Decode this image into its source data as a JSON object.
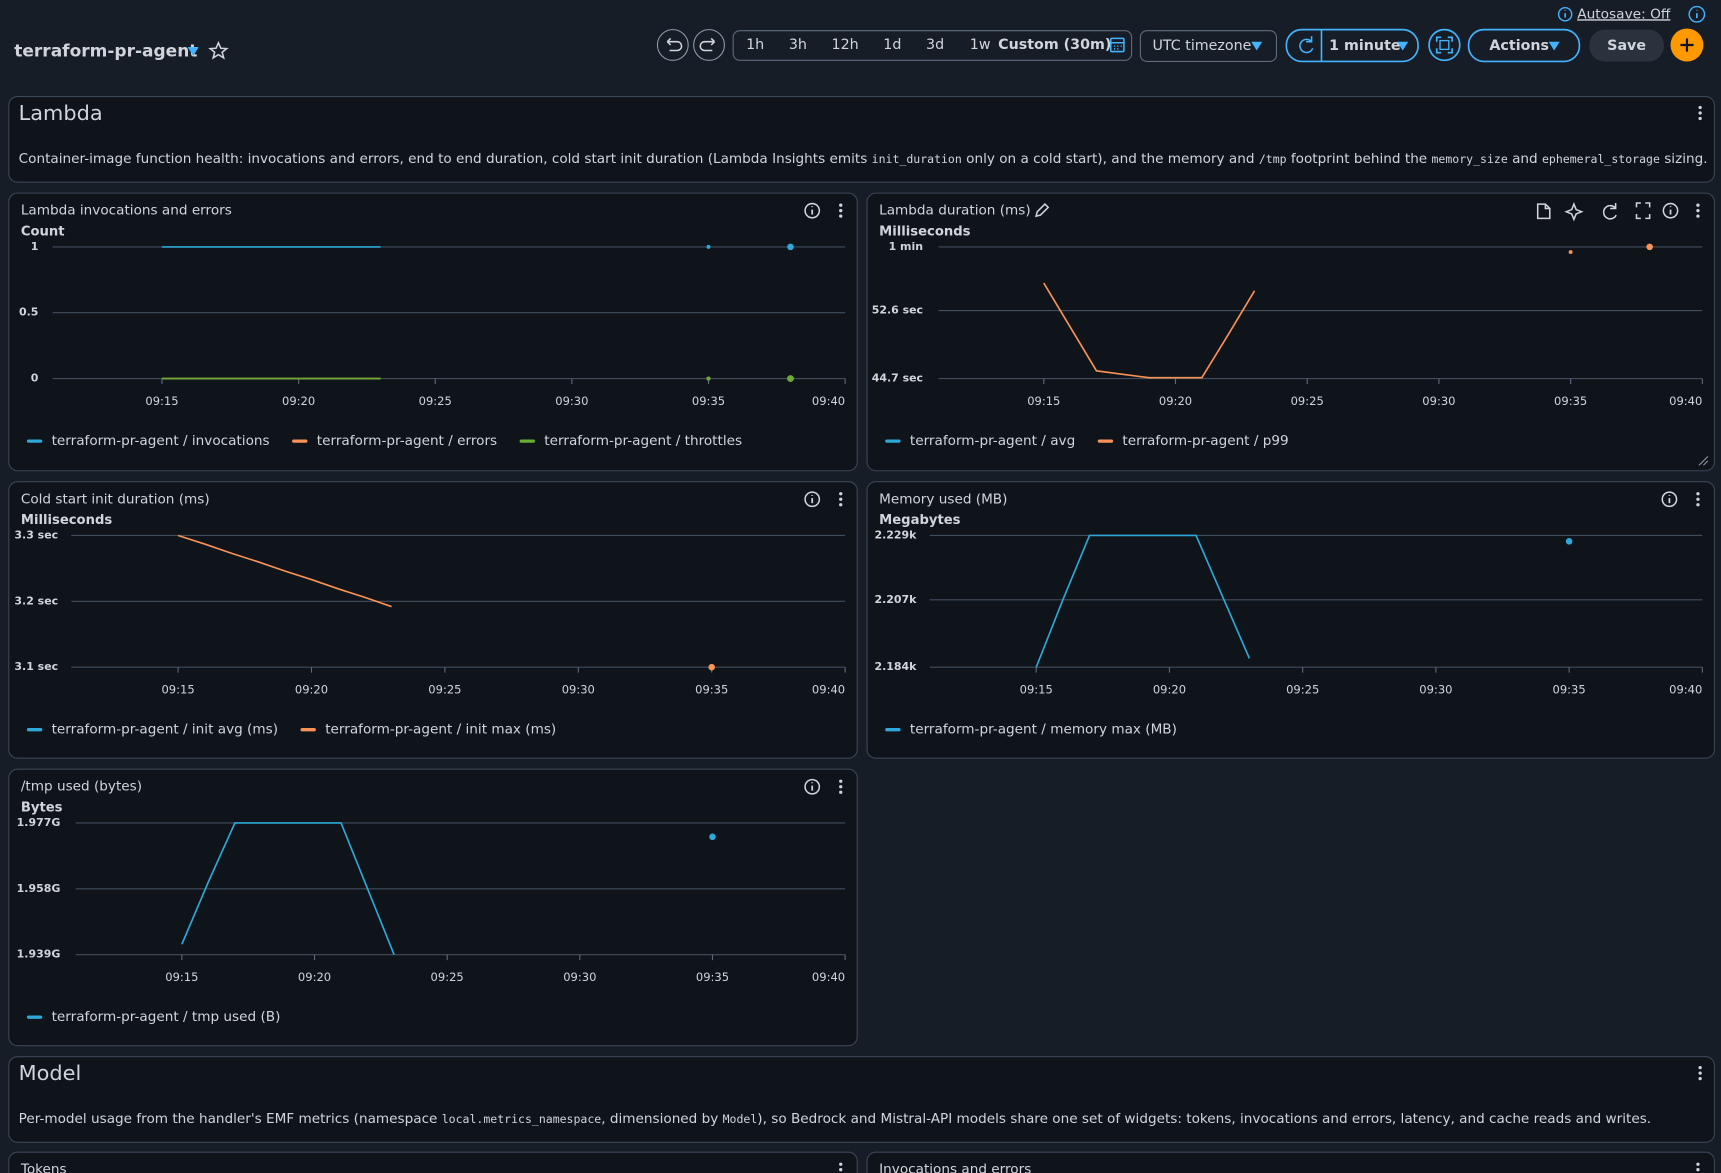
{
  "header": {
    "title": "terraform-pr-agent"
  },
  "toolbar": {
    "time_ranges": [
      "1h",
      "3h",
      "12h",
      "1d",
      "3d",
      "1w",
      "Custom (30m)"
    ],
    "timezone": "UTC timezone",
    "refresh_interval": "1 minute",
    "actions": "Actions",
    "save": "Save",
    "autosave": "Autosave: Off"
  },
  "sections": [
    {
      "title": "Lambda",
      "description": [
        "Container-image function health: invocations and errors, end to end duration, cold start init duration (Lambda Insights emits ",
        "init_duration",
        " only on a cold start), and the memory and ",
        "/tmp",
        " footprint behind the ",
        "memory_size",
        " and ",
        "ephemeral_storage",
        " sizing."
      ]
    },
    {
      "title": "Model",
      "description": [
        "Per-model usage from the handler's EMF metrics (namespace ",
        "local.metrics_namespace",
        ", dimensioned by ",
        "Model",
        "), so Bedrock and Mistral-API models share one set of widgets: tokens, invocations and errors, latency, and cache reads and writes."
      ]
    }
  ],
  "widgets": [
    {
      "title": "Lambda invocations and errors",
      "chart_data": {
        "type": "line",
        "y_label": "Count",
        "x": [
          "09:15",
          "09:16",
          "09:17",
          "09:18",
          "09:19",
          "09:20",
          "09:21",
          "09:22",
          "09:23",
          "09:24",
          "09:25",
          "09:26",
          "09:27",
          "09:28",
          "09:29",
          "09:30",
          "09:31",
          "09:32",
          "09:33",
          "09:34",
          "09:35",
          "09:36",
          "09:37",
          "09:38"
        ],
        "xlim": [
          "09:11",
          "09:40"
        ],
        "xticks": [
          "09:15",
          "09:20",
          "09:25",
          "09:30",
          "09:35",
          "09:40"
        ],
        "ylim": [
          0,
          1
        ],
        "yticks": [
          0,
          0.5,
          1
        ],
        "grid": true,
        "series": [
          {
            "name": "terraform-pr-agent / invocations",
            "color": "#2ea8d8",
            "values": [
              1,
              1,
              1,
              1,
              1,
              1,
              1,
              1,
              1,
              null,
              null,
              null,
              null,
              null,
              null,
              null,
              null,
              null,
              null,
              null,
              1,
              null,
              null,
              1
            ]
          },
          {
            "name": "terraform-pr-agent / errors",
            "color": "#f89256",
            "values": [
              0,
              0,
              0,
              0,
              0,
              0,
              0,
              0,
              0,
              null,
              null,
              null,
              null,
              null,
              null,
              null,
              null,
              null,
              null,
              null,
              0,
              null,
              null,
              0
            ]
          },
          {
            "name": "terraform-pr-agent / throttles",
            "color": "#69ae34",
            "values": [
              0,
              0,
              0,
              0,
              0,
              0,
              0,
              0,
              0,
              null,
              null,
              null,
              null,
              null,
              null,
              null,
              null,
              null,
              null,
              null,
              0,
              null,
              null,
              0
            ]
          }
        ]
      }
    },
    {
      "title": "Lambda duration (ms)",
      "chart_data": {
        "type": "line",
        "y_label": "Milliseconds",
        "x": [
          "09:15",
          "09:16",
          "09:17",
          "09:18",
          "09:19",
          "09:20",
          "09:21",
          "09:22",
          "09:23",
          "09:24",
          "09:25",
          "09:26",
          "09:27",
          "09:28",
          "09:29",
          "09:30",
          "09:31",
          "09:32",
          "09:33",
          "09:34",
          "09:35",
          "09:36",
          "09:37",
          "09:38"
        ],
        "xlim": [
          "09:11",
          "09:40"
        ],
        "xticks": [
          "09:15",
          "09:20",
          "09:25",
          "09:30",
          "09:35",
          "09:40"
        ],
        "ylim": [
          44700,
          60000
        ],
        "yticks": [
          {
            "value": 44700,
            "label": "44.7 sec"
          },
          {
            "value": 52600,
            "label": "52.6 sec"
          },
          {
            "value": 60000,
            "label": "1 min"
          }
        ],
        "grid": true,
        "series": [
          {
            "name": "terraform-pr-agent / avg",
            "color": "#2ea8d8",
            "values": [
              null,
              null,
              null,
              null,
              null,
              null,
              null,
              null,
              null,
              null,
              null,
              null,
              null,
              null,
              null,
              null,
              null,
              null,
              null,
              null,
              null,
              null,
              null,
              null
            ]
          },
          {
            "name": "terraform-pr-agent / p99",
            "color": "#f89256",
            "values": [
              55800,
              50700,
              45600,
              45200,
              44800,
              44800,
              44800,
              49800,
              54900,
              null,
              null,
              null,
              null,
              null,
              null,
              null,
              null,
              null,
              null,
              null,
              59400,
              null,
              null,
              60000
            ]
          }
        ]
      }
    },
    {
      "title": "Cold start init duration (ms)",
      "chart_data": {
        "type": "line",
        "y_label": "Milliseconds",
        "x": [
          "09:15",
          "09:16",
          "09:17",
          "09:18",
          "09:19",
          "09:20",
          "09:21",
          "09:22",
          "09:23",
          "09:24",
          "09:25",
          "09:26",
          "09:27",
          "09:28",
          "09:29",
          "09:30",
          "09:31",
          "09:32",
          "09:33",
          "09:34",
          "09:35"
        ],
        "xlim": [
          "09:11",
          "09:40"
        ],
        "xticks": [
          "09:15",
          "09:20",
          "09:25",
          "09:30",
          "09:35",
          "09:40"
        ],
        "ylim": [
          3100,
          3300
        ],
        "yticks": [
          {
            "value": 3100,
            "label": "3.1 sec"
          },
          {
            "value": 3200,
            "label": "3.2 sec"
          },
          {
            "value": 3300,
            "label": "3.3 sec"
          }
        ],
        "grid": true,
        "series": [
          {
            "name": "terraform-pr-agent / init avg (ms)",
            "color": "#2ea8d8",
            "values": [
              null,
              null,
              null,
              null,
              null,
              null,
              null,
              null,
              null,
              null,
              null,
              null,
              null,
              null,
              null,
              null,
              null,
              null,
              null,
              null,
              null
            ]
          },
          {
            "name": "terraform-pr-agent / init max (ms)",
            "color": "#f89256",
            "values": [
              3300,
              3287,
              3273,
              3260,
              3246,
              3233,
              3219,
              3206,
              3192,
              null,
              null,
              null,
              null,
              null,
              null,
              null,
              null,
              null,
              null,
              null,
              3100
            ]
          }
        ]
      }
    },
    {
      "title": "Memory used (MB)",
      "chart_data": {
        "type": "line",
        "y_label": "Megabytes",
        "x": [
          "09:15",
          "09:16",
          "09:17",
          "09:18",
          "09:19",
          "09:20",
          "09:21",
          "09:22",
          "09:23",
          "09:24",
          "09:25",
          "09:26",
          "09:27",
          "09:28",
          "09:29",
          "09:30",
          "09:31",
          "09:32",
          "09:33",
          "09:34",
          "09:35"
        ],
        "xlim": [
          "09:11",
          "09:40"
        ],
        "xticks": [
          "09:15",
          "09:20",
          "09:25",
          "09:30",
          "09:35",
          "09:40"
        ],
        "ylim": [
          2184,
          2229
        ],
        "yticks": [
          {
            "value": 2184,
            "label": "2.184k"
          },
          {
            "value": 2207,
            "label": "2.207k"
          },
          {
            "value": 2229,
            "label": "2.229k"
          }
        ],
        "grid": true,
        "series": [
          {
            "name": "terraform-pr-agent / memory max (MB)",
            "color": "#2ea8d8",
            "values": [
              2184,
              2207,
              2229,
              2229,
              2229,
              2229,
              2229,
              2208,
              2187,
              null,
              null,
              null,
              null,
              null,
              null,
              null,
              null,
              null,
              null,
              null,
              2227
            ]
          }
        ]
      }
    },
    {
      "title": "/tmp used (bytes)",
      "chart_data": {
        "type": "line",
        "y_label": "Bytes",
        "x": [
          "09:15",
          "09:16",
          "09:17",
          "09:18",
          "09:19",
          "09:20",
          "09:21",
          "09:22",
          "09:23",
          "09:24",
          "09:25",
          "09:26",
          "09:27",
          "09:28",
          "09:29",
          "09:30",
          "09:31",
          "09:32",
          "09:33",
          "09:34",
          "09:35"
        ],
        "xlim": [
          "09:11",
          "09:40"
        ],
        "xticks": [
          "09:15",
          "09:20",
          "09:25",
          "09:30",
          "09:35",
          "09:40"
        ],
        "ylim": [
          1939000000,
          1977000000
        ],
        "yticks": [
          {
            "value": 1939000000,
            "label": "1.939G"
          },
          {
            "value": 1958000000,
            "label": "1.958G"
          },
          {
            "value": 1977000000,
            "label": "1.977G"
          }
        ],
        "grid": true,
        "series": [
          {
            "name": "terraform-pr-agent / tmp used (B)",
            "color": "#2ea8d8",
            "values": [
              1942000000,
              1960000000,
              1977000000,
              1977000000,
              1977000000,
              1977000000,
              1977000000,
              1958000000,
              1939000000,
              null,
              null,
              null,
              null,
              null,
              null,
              null,
              null,
              null,
              null,
              null,
              1973000000
            ]
          }
        ]
      }
    },
    {
      "title": "Tokens"
    },
    {
      "title": "Invocations and errors"
    }
  ]
}
